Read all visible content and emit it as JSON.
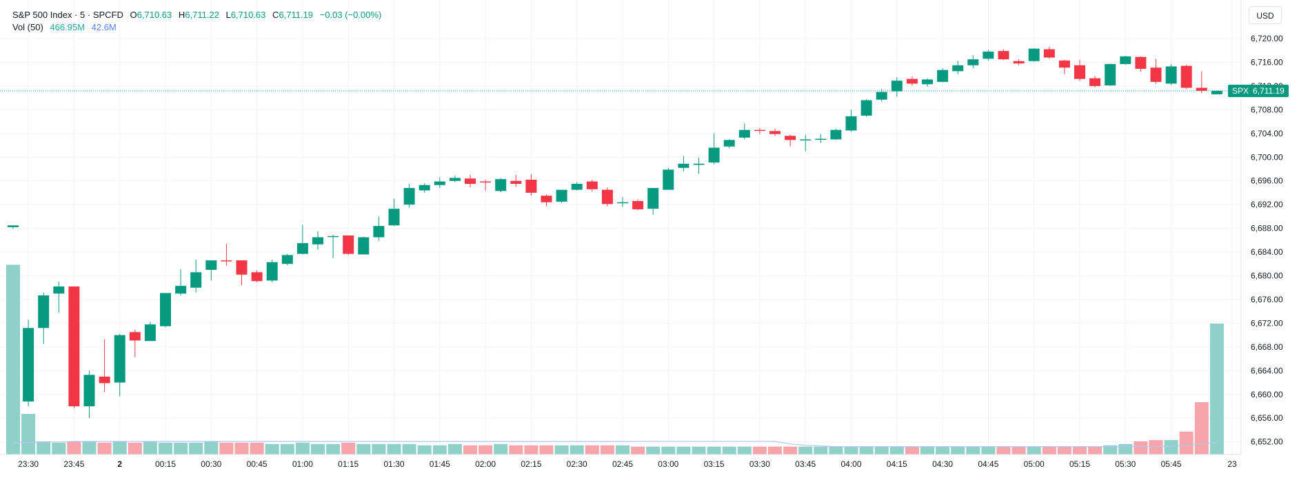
{
  "legend": {
    "title": "S&P 500 Index · 5 · SPCFD",
    "open_label": "O",
    "open": "6,710.63",
    "high_label": "H",
    "high": "6,711.22",
    "low_label": "L",
    "low": "6,710.63",
    "close_label": "C",
    "close": "6,711.19",
    "change": "−0.03 (−0.00%)",
    "vol_label": "Vol (50)",
    "vol_value": "466.95M",
    "vol_ma": "42.6M"
  },
  "currency_button": "USD",
  "price_tag": {
    "symbol": "SPX",
    "value": "6,711.19",
    "price": 6711.19
  },
  "colors": {
    "up": "#089981",
    "down": "#f23645",
    "vol_up": "#8fd1c9",
    "vol_down": "#f7a5ab",
    "grid": "#f0f3fa",
    "ma": "#b3c7f7"
  },
  "chart_data": {
    "type": "candlestick",
    "interval": "5",
    "ylim": [
      6648,
      6723
    ],
    "y_ticks": [
      6652,
      6656,
      6660,
      6664,
      6668,
      6672,
      6676,
      6680,
      6684,
      6688,
      6692,
      6696,
      6700,
      6704,
      6708,
      6712,
      6716,
      6720
    ],
    "y_tick_labels": [
      "6,652.00",
      "6,656.00",
      "6,660.00",
      "6,664.00",
      "6,668.00",
      "6,672.00",
      "6,676.00",
      "6,680.00",
      "6,684.00",
      "6,688.00",
      "6,692.00",
      "6,696.00",
      "6,700.00",
      "6,704.00",
      "6,708.00",
      "6,712.00",
      "6,716.00",
      "6,720.00"
    ],
    "x_tick_labels": [
      {
        "label": "23:30",
        "index": 1
      },
      {
        "label": "23:45",
        "index": 4
      },
      {
        "label": "2",
        "index": 7
      },
      {
        "label": "00:15",
        "index": 10
      },
      {
        "label": "00:30",
        "index": 13
      },
      {
        "label": "00:45",
        "index": 16
      },
      {
        "label": "01:00",
        "index": 19
      },
      {
        "label": "01:15",
        "index": 22
      },
      {
        "label": "01:30",
        "index": 25
      },
      {
        "label": "01:45",
        "index": 28
      },
      {
        "label": "02:00",
        "index": 31
      },
      {
        "label": "02:15",
        "index": 34
      },
      {
        "label": "02:30",
        "index": 37
      },
      {
        "label": "02:45",
        "index": 40
      },
      {
        "label": "03:00",
        "index": 43
      },
      {
        "label": "03:15",
        "index": 46
      },
      {
        "label": "03:30",
        "index": 49
      },
      {
        "label": "03:45",
        "index": 52
      },
      {
        "label": "04:00",
        "index": 55
      },
      {
        "label": "04:15",
        "index": 58
      },
      {
        "label": "04:30",
        "index": 61
      },
      {
        "label": "04:45",
        "index": 64
      },
      {
        "label": "05:00",
        "index": 67
      },
      {
        "label": "05:15",
        "index": 70
      },
      {
        "label": "05:30",
        "index": 73
      },
      {
        "label": "05:45",
        "index": 76
      },
      {
        "label": "23",
        "index": 80
      }
    ],
    "candles": [
      {
        "o": 6688.2,
        "h": 6688.5,
        "l": 6687.9,
        "c": 6688.5
      },
      {
        "o": 6658.8,
        "h": 6672.6,
        "l": 6658.0,
        "c": 6671.2
      },
      {
        "o": 6671.2,
        "h": 6677.2,
        "l": 6668.5,
        "c": 6676.7
      },
      {
        "o": 6677.0,
        "h": 6679.0,
        "l": 6673.8,
        "c": 6678.2
      },
      {
        "o": 6678.2,
        "h": 6678.2,
        "l": 6657.7,
        "c": 6658.0
      },
      {
        "o": 6658.0,
        "h": 6664.0,
        "l": 6656.0,
        "c": 6663.3
      },
      {
        "o": 6663.0,
        "h": 6669.3,
        "l": 6660.4,
        "c": 6661.9
      },
      {
        "o": 6662.0,
        "h": 6670.2,
        "l": 6659.7,
        "c": 6670.0
      },
      {
        "o": 6670.5,
        "h": 6670.9,
        "l": 6666.3,
        "c": 6669.1
      },
      {
        "o": 6669.0,
        "h": 6672.2,
        "l": 6669.0,
        "c": 6671.8
      },
      {
        "o": 6671.5,
        "h": 6677.0,
        "l": 6671.3,
        "c": 6677.1
      },
      {
        "o": 6677.0,
        "h": 6681.1,
        "l": 6676.7,
        "c": 6678.3
      },
      {
        "o": 6678.0,
        "h": 6682.7,
        "l": 6677.2,
        "c": 6680.6
      },
      {
        "o": 6681.0,
        "h": 6682.3,
        "l": 6679.2,
        "c": 6682.6
      },
      {
        "o": 6682.6,
        "h": 6685.4,
        "l": 6681.7,
        "c": 6682.5
      },
      {
        "o": 6682.6,
        "h": 6682.6,
        "l": 6678.4,
        "c": 6680.2
      },
      {
        "o": 6680.6,
        "h": 6680.9,
        "l": 6678.9,
        "c": 6679.1
      },
      {
        "o": 6679.2,
        "h": 6682.7,
        "l": 6678.9,
        "c": 6682.3
      },
      {
        "o": 6682.0,
        "h": 6683.7,
        "l": 6681.8,
        "c": 6683.5
      },
      {
        "o": 6683.7,
        "h": 6688.6,
        "l": 6683.6,
        "c": 6685.5
      },
      {
        "o": 6685.3,
        "h": 6687.5,
        "l": 6684.4,
        "c": 6686.5
      },
      {
        "o": 6686.6,
        "h": 6686.9,
        "l": 6683.0,
        "c": 6686.7
      },
      {
        "o": 6686.8,
        "h": 6686.8,
        "l": 6683.5,
        "c": 6683.7
      },
      {
        "o": 6683.6,
        "h": 6686.6,
        "l": 6683.6,
        "c": 6686.5
      },
      {
        "o": 6686.5,
        "h": 6690.0,
        "l": 6685.9,
        "c": 6688.4
      },
      {
        "o": 6688.5,
        "h": 6693.0,
        "l": 6688.4,
        "c": 6691.3
      },
      {
        "o": 6692.0,
        "h": 6695.5,
        "l": 6691.5,
        "c": 6694.8
      },
      {
        "o": 6694.4,
        "h": 6695.6,
        "l": 6694.0,
        "c": 6695.3
      },
      {
        "o": 6695.3,
        "h": 6696.6,
        "l": 6694.8,
        "c": 6695.9
      },
      {
        "o": 6696.0,
        "h": 6696.9,
        "l": 6695.8,
        "c": 6696.5
      },
      {
        "o": 6696.4,
        "h": 6697.0,
        "l": 6694.9,
        "c": 6695.5
      },
      {
        "o": 6695.9,
        "h": 6696.2,
        "l": 6694.3,
        "c": 6695.8
      },
      {
        "o": 6694.3,
        "h": 6696.5,
        "l": 6694.1,
        "c": 6696.3
      },
      {
        "o": 6696.0,
        "h": 6697.0,
        "l": 6695.0,
        "c": 6695.5
      },
      {
        "o": 6696.2,
        "h": 6697.1,
        "l": 6693.5,
        "c": 6694.0
      },
      {
        "o": 6693.5,
        "h": 6693.7,
        "l": 6691.7,
        "c": 6692.4
      },
      {
        "o": 6692.5,
        "h": 6694.5,
        "l": 6692.3,
        "c": 6694.5
      },
      {
        "o": 6694.5,
        "h": 6695.8,
        "l": 6694.4,
        "c": 6695.5
      },
      {
        "o": 6695.9,
        "h": 6696.2,
        "l": 6694.2,
        "c": 6694.6
      },
      {
        "o": 6694.5,
        "h": 6694.9,
        "l": 6691.7,
        "c": 6692.1
      },
      {
        "o": 6692.3,
        "h": 6693.3,
        "l": 6691.6,
        "c": 6692.4
      },
      {
        "o": 6692.6,
        "h": 6692.9,
        "l": 6691.1,
        "c": 6691.2
      },
      {
        "o": 6691.3,
        "h": 6694.8,
        "l": 6690.3,
        "c": 6694.8
      },
      {
        "o": 6694.5,
        "h": 6698.2,
        "l": 6694.5,
        "c": 6697.9
      },
      {
        "o": 6698.2,
        "h": 6700.2,
        "l": 6697.6,
        "c": 6698.9
      },
      {
        "o": 6698.7,
        "h": 6699.9,
        "l": 6697.2,
        "c": 6698.9
      },
      {
        "o": 6699.1,
        "h": 6704.0,
        "l": 6698.8,
        "c": 6701.6
      },
      {
        "o": 6701.8,
        "h": 6703.0,
        "l": 6701.5,
        "c": 6702.9
      },
      {
        "o": 6703.3,
        "h": 6705.7,
        "l": 6703.0,
        "c": 6704.6
      },
      {
        "o": 6704.6,
        "h": 6704.9,
        "l": 6703.9,
        "c": 6704.5
      },
      {
        "o": 6704.4,
        "h": 6704.8,
        "l": 6703.6,
        "c": 6703.9
      },
      {
        "o": 6703.6,
        "h": 6703.8,
        "l": 6701.8,
        "c": 6702.9
      },
      {
        "o": 6702.9,
        "h": 6703.8,
        "l": 6701.0,
        "c": 6703.0
      },
      {
        "o": 6703.0,
        "h": 6703.9,
        "l": 6702.4,
        "c": 6703.1
      },
      {
        "o": 6703.0,
        "h": 6704.8,
        "l": 6702.9,
        "c": 6704.6
      },
      {
        "o": 6704.5,
        "h": 6708.0,
        "l": 6704.3,
        "c": 6706.9
      },
      {
        "o": 6707.0,
        "h": 6709.8,
        "l": 6706.8,
        "c": 6709.6
      },
      {
        "o": 6709.7,
        "h": 6711.5,
        "l": 6709.4,
        "c": 6711.0
      },
      {
        "o": 6711.1,
        "h": 6713.5,
        "l": 6710.2,
        "c": 6712.9
      },
      {
        "o": 6713.2,
        "h": 6713.6,
        "l": 6712.1,
        "c": 6712.4
      },
      {
        "o": 6712.3,
        "h": 6713.3,
        "l": 6711.9,
        "c": 6713.1
      },
      {
        "o": 6712.7,
        "h": 6715.0,
        "l": 6712.6,
        "c": 6714.7
      },
      {
        "o": 6714.5,
        "h": 6716.3,
        "l": 6714.0,
        "c": 6715.5
      },
      {
        "o": 6715.5,
        "h": 6717.2,
        "l": 6715.0,
        "c": 6716.5
      },
      {
        "o": 6716.6,
        "h": 6718.1,
        "l": 6716.3,
        "c": 6717.8
      },
      {
        "o": 6717.9,
        "h": 6718.2,
        "l": 6716.4,
        "c": 6716.5
      },
      {
        "o": 6716.2,
        "h": 6716.5,
        "l": 6715.5,
        "c": 6715.8
      },
      {
        "o": 6716.2,
        "h": 6718.4,
        "l": 6716.1,
        "c": 6718.3
      },
      {
        "o": 6718.2,
        "h": 6718.6,
        "l": 6716.6,
        "c": 6716.8
      },
      {
        "o": 6716.3,
        "h": 6716.4,
        "l": 6714.0,
        "c": 6715.1
      },
      {
        "o": 6715.5,
        "h": 6716.4,
        "l": 6712.9,
        "c": 6713.2
      },
      {
        "o": 6713.3,
        "h": 6713.7,
        "l": 6711.8,
        "c": 6712.0
      },
      {
        "o": 6712.1,
        "h": 6715.8,
        "l": 6712.0,
        "c": 6715.7
      },
      {
        "o": 6715.7,
        "h": 6717.1,
        "l": 6715.6,
        "c": 6717.0
      },
      {
        "o": 6716.9,
        "h": 6717.0,
        "l": 6714.4,
        "c": 6714.9
      },
      {
        "o": 6715.1,
        "h": 6716.5,
        "l": 6712.4,
        "c": 6712.7
      },
      {
        "o": 6712.4,
        "h": 6715.7,
        "l": 6712.2,
        "c": 6715.3
      },
      {
        "o": 6715.4,
        "h": 6715.6,
        "l": 6711.5,
        "c": 6711.7
      },
      {
        "o": 6711.7,
        "h": 6714.5,
        "l": 6710.8,
        "c": 6711.2
      },
      {
        "o": 6710.6,
        "h": 6711.2,
        "l": 6710.6,
        "c": 6711.2
      }
    ],
    "volume": {
      "label": "Vol (50)",
      "ylim": [
        0,
        330
      ],
      "values": [
        290,
        62,
        20,
        18,
        20,
        20,
        18,
        20,
        18,
        20,
        18,
        18,
        18,
        20,
        18,
        18,
        18,
        16,
        16,
        18,
        16,
        16,
        18,
        16,
        16,
        16,
        16,
        14,
        14,
        16,
        14,
        14,
        16,
        14,
        14,
        14,
        14,
        14,
        14,
        14,
        14,
        12,
        12,
        12,
        12,
        12,
        12,
        12,
        12,
        12,
        12,
        12,
        12,
        12,
        12,
        12,
        12,
        12,
        12,
        12,
        12,
        12,
        12,
        12,
        12,
        12,
        12,
        12,
        12,
        12,
        12,
        12,
        14,
        16,
        20,
        22,
        22,
        35,
        80,
        200
      ],
      "ma": [
        18,
        18,
        19,
        19,
        20,
        20,
        20,
        20,
        20,
        20,
        20,
        20,
        20,
        20,
        20,
        20,
        20,
        20,
        20,
        20,
        20,
        20,
        20,
        20,
        20,
        20,
        20,
        20,
        20,
        20,
        20,
        20,
        20,
        20,
        20,
        20,
        20,
        20,
        20,
        20,
        20,
        20,
        20,
        20,
        20,
        20,
        20,
        20,
        20,
        20,
        20,
        16,
        14,
        13,
        12,
        12,
        12,
        12,
        12,
        12,
        12,
        12,
        12,
        12,
        12,
        12,
        12,
        12,
        12,
        12,
        12,
        12,
        12,
        12,
        12,
        12,
        13,
        14,
        16,
        18
      ]
    }
  }
}
